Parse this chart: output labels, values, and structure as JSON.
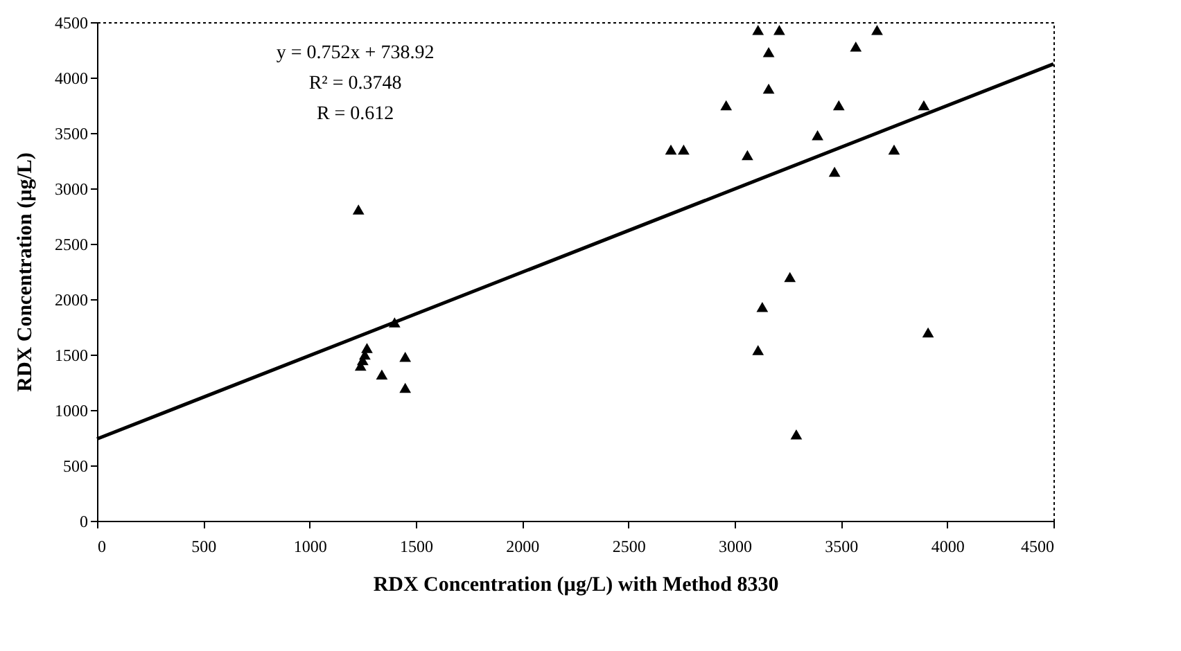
{
  "chart_data": {
    "type": "scatter",
    "xlabel": "RDX Concentration (µg/L) with Method 8330",
    "ylabel": "RDX Concentration (µg/L)",
    "annotations": [
      "y = 0.752x + 738.92",
      "R² = 0.3748",
      "R = 0.612"
    ],
    "xlim": [
      0,
      4500
    ],
    "xticks": [
      0,
      500,
      1000,
      1500,
      2000,
      2500,
      3000,
      3500,
      4000,
      4500
    ],
    "ylim": [
      0,
      4500
    ],
    "yticks": [
      0,
      500,
      1000,
      1500,
      2000,
      2500,
      3000,
      3500,
      4000,
      4500
    ],
    "grid": false,
    "marker": "triangle",
    "series": [
      {
        "color": "#000000",
        "x": [
          1230,
          1240,
          1250,
          1260,
          1270,
          1340,
          1400,
          1450,
          1450,
          2700,
          2760,
          2960,
          3060,
          3110,
          3210,
          3670,
          3160,
          3160,
          3570,
          3390,
          3490,
          3470,
          3750,
          3890,
          3260,
          3130,
          3110,
          3290,
          3910
        ],
        "values": [
          2810,
          1400,
          1450,
          1500,
          1560,
          1320,
          1790,
          1480,
          1200,
          3350,
          3350,
          3750,
          3300,
          4430,
          4430,
          4430,
          4230,
          3900,
          4280,
          3480,
          3750,
          3150,
          3350,
          3750,
          2200,
          1930,
          1540,
          780,
          1700
        ]
      },
      {
        "type": "line",
        "color": "#000000",
        "x": [
          0,
          4500
        ],
        "values": [
          739,
          4123
        ],
        "line_style": "solid",
        "marker": "none"
      }
    ]
  }
}
